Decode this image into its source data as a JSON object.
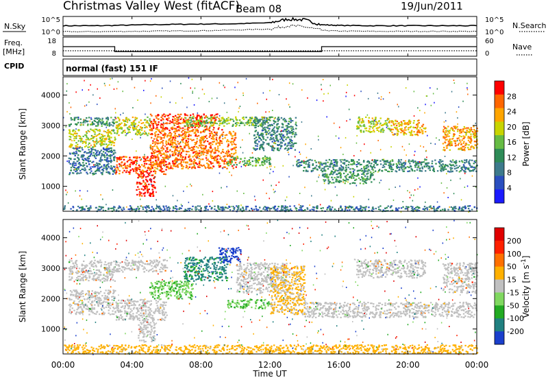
{
  "header": {
    "station": "Christmas Valley West (fitACF)",
    "beam": "Beam 08",
    "date": "19/Jun/2011"
  },
  "sky_panel": {
    "left_label": "N.Sky",
    "left_ticks": [
      "10^5",
      "10^0"
    ],
    "right_ticks": [
      "10^5",
      "10^0"
    ],
    "right_label": "N.Search"
  },
  "freq_panel": {
    "left_label_1": "Freq.",
    "left_label_2": "[MHz]",
    "left_ticks": [
      "18",
      "8"
    ],
    "right_ticks": [
      "60",
      "0"
    ],
    "right_label": "Nave"
  },
  "cpid_panel": {
    "label": "CPID",
    "text": "normal (fast) 151 IF"
  },
  "x_axis": {
    "label": "Time UT",
    "ticks": [
      "00:00",
      "04:00",
      "08:00",
      "12:00",
      "16:00",
      "20:00",
      "00:00"
    ]
  },
  "power_panel": {
    "ylabel": "Slant Range [km]",
    "yticks": [
      "4000",
      "3000",
      "2000",
      "1000"
    ],
    "colorbar_label": "Power [dB]",
    "colorbar_ticks": [
      "28",
      "24",
      "20",
      "16",
      "12",
      "8",
      "4"
    ],
    "colors": [
      "#1a1aff",
      "#2a4fbf",
      "#3d7a8c",
      "#2e8b57",
      "#66bb44",
      "#c8d400",
      "#ffa500",
      "#ff6600",
      "#ff0000"
    ]
  },
  "velocity_panel": {
    "ylabel": "Slant Range [km]",
    "yticks": [
      "4000",
      "3000",
      "2000",
      "1000"
    ],
    "colorbar_label": "Velocity [m s^-1]",
    "colorbar_ticks": [
      "200",
      "100",
      "50",
      "15",
      "-15",
      "-50",
      "-100",
      "-200"
    ],
    "colors": [
      "#1a3fcc",
      "#208080",
      "#22aa22",
      "#80d860",
      "#c0c0c0",
      "#ffb000",
      "#ff7000",
      "#ff2000",
      "#e00000"
    ]
  },
  "chart_data": [
    {
      "type": "line",
      "title": "N.Sky / N.Search",
      "x": [
        0,
        2,
        4,
        6,
        8,
        10,
        12,
        13,
        14,
        15,
        16,
        18,
        20,
        22,
        24
      ],
      "series": [
        {
          "name": "N.Sky",
          "values": [
            2.6,
            2.6,
            2.8,
            3.0,
            3.1,
            3.2,
            3.5,
            4.6,
            4.4,
            2.9,
            2.7,
            2.6,
            2.6,
            2.6,
            2.6
          ]
        },
        {
          "name": "N.Search",
          "values": [
            0.8,
            0.8,
            0.9,
            1.0,
            1.1,
            1.3,
            1.6,
            2.6,
            2.3,
            1.2,
            1.0,
            0.9,
            0.9,
            0.9,
            0.9
          ]
        }
      ],
      "xlim": [
        0,
        24
      ],
      "ylim": [
        0,
        5
      ]
    },
    {
      "type": "line",
      "title": "Freq. / Nave",
      "x": [
        0,
        3.0,
        3.0,
        15.0,
        15.0,
        24
      ],
      "series": [
        {
          "name": "Freq.",
          "values": [
            13,
            13,
            10,
            10,
            13,
            13
          ]
        },
        {
          "name": "Nave",
          "values": [
            18,
            18,
            18,
            18,
            18,
            18
          ]
        }
      ],
      "xlim": [
        0,
        24
      ],
      "ylim": [
        8,
        18
      ]
    },
    {
      "type": "heatmap",
      "title": "Power [dB]",
      "x_unit": "hours UT",
      "y_unit": "km",
      "xlim": [
        0,
        24
      ],
      "ylim": [
        180,
        4600
      ],
      "value_range": [
        0,
        30
      ],
      "bands": [
        {
          "x": [
            0.3,
            3.0
          ],
          "y": [
            3000,
            3300
          ],
          "value": 12
        },
        {
          "x": [
            0.3,
            3.0
          ],
          "y": [
            2300,
            2900
          ],
          "value": 18
        },
        {
          "x": [
            0.3,
            3.0
          ],
          "y": [
            1400,
            2300
          ],
          "value": 8
        },
        {
          "x": [
            3.0,
            5.0
          ],
          "y": [
            2700,
            3300
          ],
          "value": 18
        },
        {
          "x": [
            3.0,
            6.0
          ],
          "y": [
            1400,
            2000
          ],
          "value": 26
        },
        {
          "x": [
            4.2,
            5.3
          ],
          "y": [
            700,
            1400
          ],
          "value": 28
        },
        {
          "x": [
            5.0,
            9.0
          ],
          "y": [
            2900,
            3400
          ],
          "value": 26
        },
        {
          "x": [
            5.0,
            10.0
          ],
          "y": [
            1600,
            2900
          ],
          "value": 24
        },
        {
          "x": [
            7.0,
            12.0
          ],
          "y": [
            3000,
            3300
          ],
          "value": 16
        },
        {
          "x": [
            9.5,
            12.0
          ],
          "y": [
            1700,
            2000
          ],
          "value": 14
        },
        {
          "x": [
            11.0,
            13.5
          ],
          "y": [
            2200,
            3300
          ],
          "value": 10
        },
        {
          "x": [
            13.5,
            24.0
          ],
          "y": [
            1500,
            1900
          ],
          "value": 10
        },
        {
          "x": [
            15.0,
            18.0
          ],
          "y": [
            1100,
            1500
          ],
          "value": 12
        },
        {
          "x": [
            17.0,
            19.0
          ],
          "y": [
            2800,
            3300
          ],
          "value": 18
        },
        {
          "x": [
            19.0,
            21.0
          ],
          "y": [
            2700,
            3200
          ],
          "value": 22
        },
        {
          "x": [
            22.0,
            24.0
          ],
          "y": [
            2200,
            3000
          ],
          "value": 22
        },
        {
          "x": [
            0.0,
            24.0
          ],
          "y": [
            200,
            380
          ],
          "value": 8
        }
      ]
    },
    {
      "type": "heatmap",
      "title": "Velocity [m s^-1]",
      "x_unit": "hours UT",
      "y_unit": "km",
      "xlim": [
        0,
        24
      ],
      "ylim": [
        180,
        4600
      ],
      "value_range": [
        -200,
        200
      ],
      "bands": [
        {
          "x": [
            0.3,
            3.0
          ],
          "y": [
            2600,
            3300
          ],
          "value": 0
        },
        {
          "x": [
            0.3,
            3.0
          ],
          "y": [
            1500,
            2300
          ],
          "value": 0
        },
        {
          "x": [
            3.0,
            6.0
          ],
          "y": [
            2900,
            3300
          ],
          "value": 0
        },
        {
          "x": [
            3.0,
            6.0
          ],
          "y": [
            1300,
            2000
          ],
          "value": 0
        },
        {
          "x": [
            4.3,
            5.3
          ],
          "y": [
            600,
            1300
          ],
          "value": 0
        },
        {
          "x": [
            5.0,
            7.5
          ],
          "y": [
            2000,
            2600
          ],
          "value": -60
        },
        {
          "x": [
            7.0,
            9.5
          ],
          "y": [
            2600,
            3400
          ],
          "value": -120
        },
        {
          "x": [
            9.0,
            10.3
          ],
          "y": [
            3200,
            3700
          ],
          "value": -200
        },
        {
          "x": [
            9.5,
            12.0
          ],
          "y": [
            1700,
            2000
          ],
          "value": -60
        },
        {
          "x": [
            10.0,
            13.0
          ],
          "y": [
            2200,
            3200
          ],
          "value": 0
        },
        {
          "x": [
            12.0,
            14.0
          ],
          "y": [
            1500,
            3100
          ],
          "value": 30
        },
        {
          "x": [
            14.0,
            24.0
          ],
          "y": [
            1400,
            1900
          ],
          "value": 0
        },
        {
          "x": [
            17.0,
            21.0
          ],
          "y": [
            2700,
            3300
          ],
          "value": 0
        },
        {
          "x": [
            22.0,
            24.0
          ],
          "y": [
            2200,
            3200
          ],
          "value": 0
        },
        {
          "x": [
            0.0,
            24.0
          ],
          "y": [
            200,
            500
          ],
          "value": 40
        }
      ]
    }
  ]
}
